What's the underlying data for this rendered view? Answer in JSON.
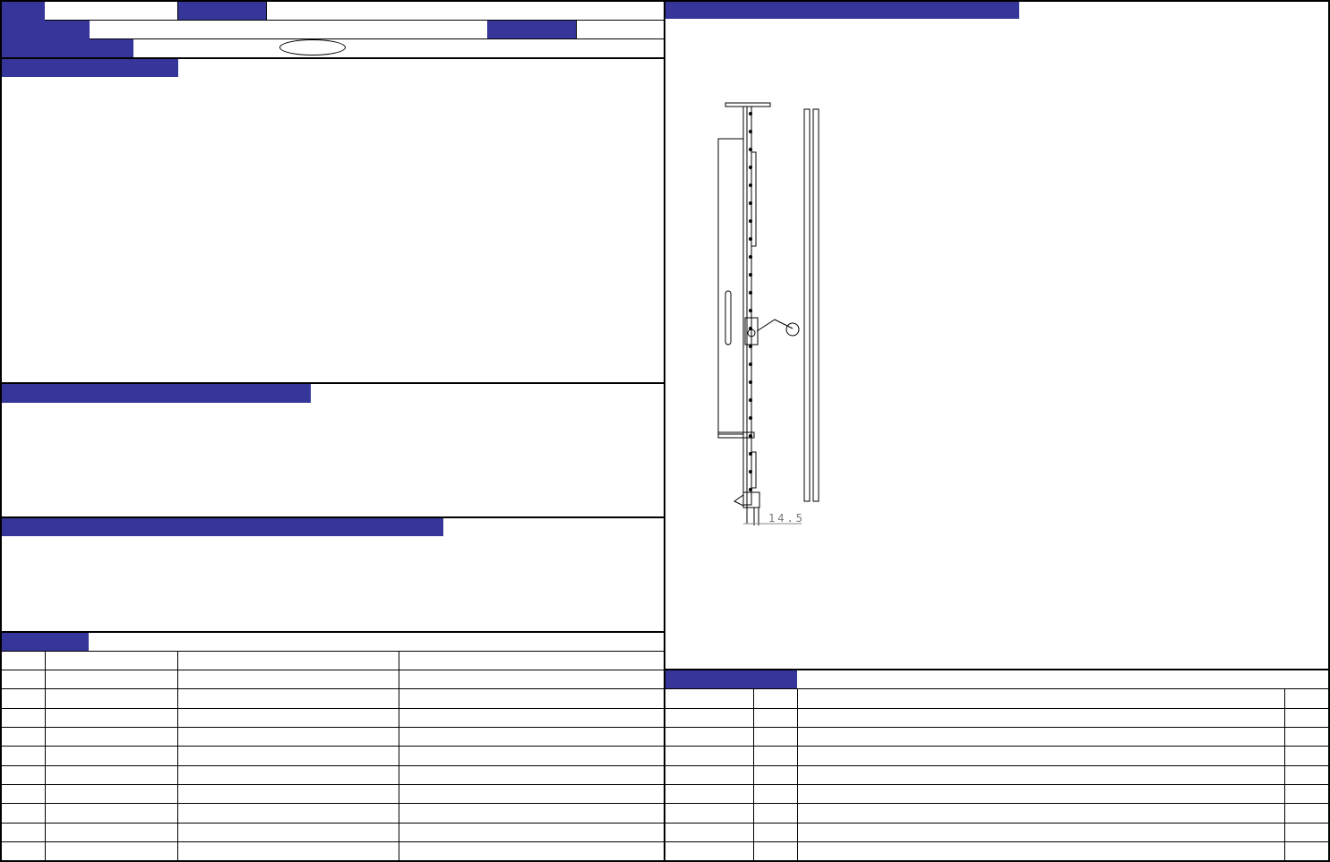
{
  "colors": {
    "header_fill": "#36369a",
    "line": "#000000"
  },
  "drawing": {
    "dimension_label": "14.5"
  },
  "left_table": {
    "rows": 11,
    "columns": 4
  },
  "right_table": {
    "rows": 9,
    "columns": 4
  }
}
